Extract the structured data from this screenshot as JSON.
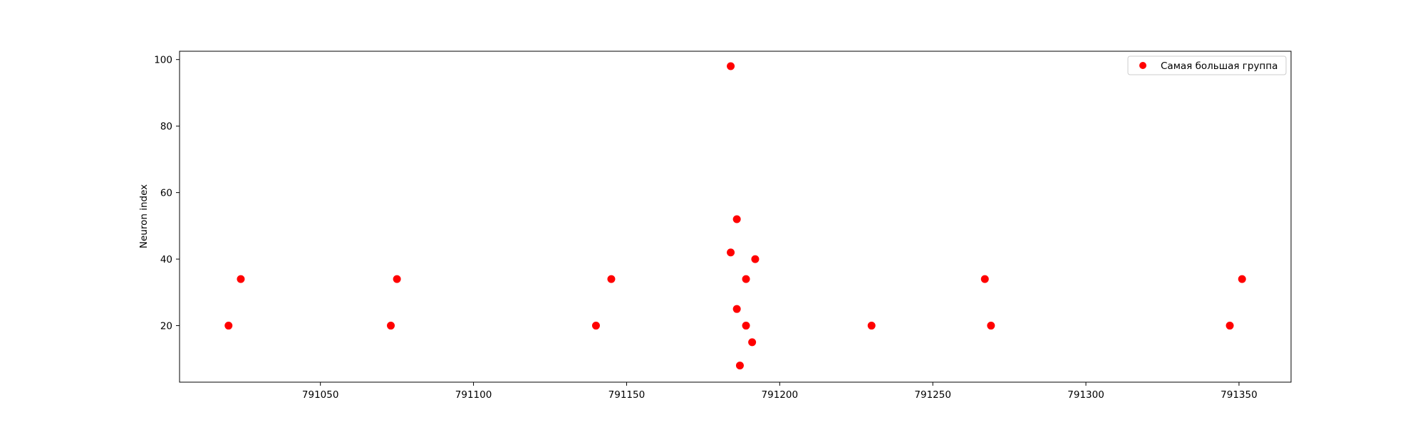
{
  "chart_data": {
    "type": "scatter",
    "title": "",
    "xlabel": "",
    "ylabel": "Neuron index",
    "xlim": [
      791004,
      791367
    ],
    "ylim": [
      3,
      102.5
    ],
    "xticks": [
      791050,
      791100,
      791150,
      791200,
      791250,
      791300,
      791350
    ],
    "yticks": [
      20,
      40,
      60,
      80,
      100
    ],
    "grid": false,
    "legend_position": "top-right",
    "series": [
      {
        "name": "Самая большая группа",
        "color": "#ff0000",
        "points": [
          [
            791020,
            20
          ],
          [
            791024,
            34
          ],
          [
            791073,
            20
          ],
          [
            791075,
            34
          ],
          [
            791140,
            20
          ],
          [
            791145,
            34
          ],
          [
            791184,
            98
          ],
          [
            791184,
            42
          ],
          [
            791186,
            52
          ],
          [
            791186,
            25
          ],
          [
            791187,
            8
          ],
          [
            791189,
            34
          ],
          [
            791189,
            20
          ],
          [
            791191,
            15
          ],
          [
            791192,
            40
          ],
          [
            791230,
            20
          ],
          [
            791267,
            34
          ],
          [
            791269,
            20
          ],
          [
            791347,
            20
          ],
          [
            791351,
            34
          ]
        ]
      }
    ]
  }
}
